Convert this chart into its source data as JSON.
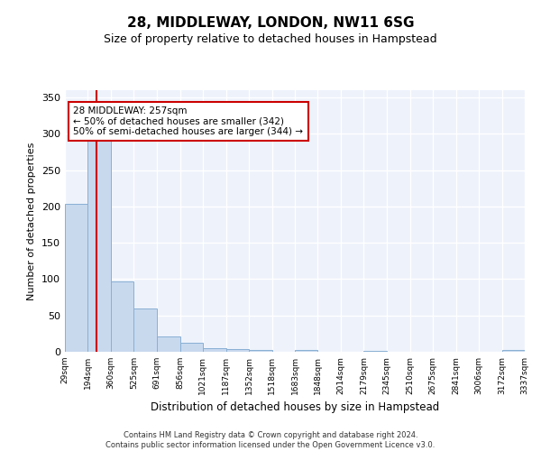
{
  "title": "28, MIDDLEWAY, LONDON, NW11 6SG",
  "subtitle": "Size of property relative to detached houses in Hampstead",
  "xlabel": "Distribution of detached houses by size in Hampstead",
  "ylabel": "Number of detached properties",
  "property_label": "28 MIDDLEWAY: 257sqm",
  "annotation_line1": "← 50% of detached houses are smaller (342)",
  "annotation_line2": "50% of semi-detached houses are larger (344) →",
  "red_line_x": 257,
  "bar_color": "#c8d9ee",
  "bar_edge_color": "#89afd4",
  "red_line_color": "#cc0000",
  "annotation_box_color": "#cc0000",
  "background_color": "#edf2fb",
  "grid_color": "#ffffff",
  "footer": "Contains HM Land Registry data © Crown copyright and database right 2024.\nContains public sector information licensed under the Open Government Licence v3.0.",
  "bin_edges": [
    29,
    194,
    360,
    525,
    691,
    856,
    1021,
    1187,
    1352,
    1518,
    1683,
    1848,
    2014,
    2179,
    2345,
    2510,
    2675,
    2841,
    3006,
    3172,
    3337
  ],
  "bar_heights": [
    203,
    291,
    97,
    60,
    21,
    12,
    5,
    4,
    2,
    0,
    3,
    0,
    0,
    1,
    0,
    0,
    0,
    0,
    0,
    2
  ],
  "ylim": [
    0,
    360
  ],
  "yticks": [
    0,
    50,
    100,
    150,
    200,
    250,
    300,
    350
  ]
}
